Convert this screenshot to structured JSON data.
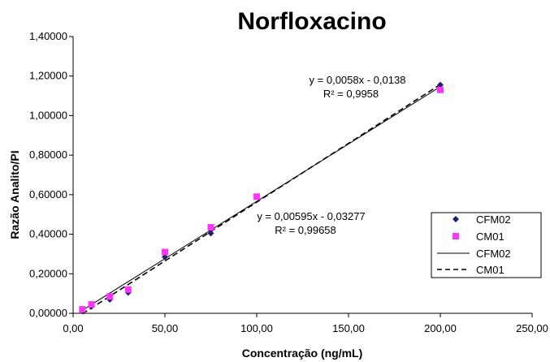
{
  "chart_data": {
    "type": "scatter",
    "title": "Norfloxacino",
    "xlabel": "Concentração (ng/mL)",
    "ylabel": "Razão Analito/PI",
    "xlim": [
      0,
      250
    ],
    "ylim": [
      0,
      1.4
    ],
    "x_ticks": [
      "0,00",
      "50,00",
      "100,00",
      "150,00",
      "200,00",
      "250,00"
    ],
    "y_ticks": [
      "0,00000",
      "0,20000",
      "0,40000",
      "0,60000",
      "0,80000",
      "1,00000",
      "1,20000",
      "1,40000"
    ],
    "grid": false,
    "legend_position": "right",
    "series": [
      {
        "name": "CFM02",
        "marker": "diamond",
        "color": "#1f1f6e",
        "points": [
          [
            5,
            0.015
          ],
          [
            10,
            0.035
          ],
          [
            20,
            0.07
          ],
          [
            30,
            0.105
          ],
          [
            50,
            0.285
          ],
          [
            75,
            0.405
          ],
          [
            200,
            1.155
          ]
        ]
      },
      {
        "name": "CM01",
        "marker": "square",
        "color": "#ff33ff",
        "points": [
          [
            5,
            0.02
          ],
          [
            10,
            0.045
          ],
          [
            20,
            0.085
          ],
          [
            30,
            0.12
          ],
          [
            50,
            0.31
          ],
          [
            75,
            0.435
          ],
          [
            100,
            0.59
          ],
          [
            200,
            1.13
          ]
        ]
      }
    ],
    "trendlines": [
      {
        "name": "CFM02",
        "style": "solid",
        "slope": 0.0058,
        "intercept": -0.0138,
        "equation": "y = 0,0058x - 0,0138",
        "r2": "R² = 0,9958"
      },
      {
        "name": "CM01",
        "style": "dashed",
        "slope": 0.00595,
        "intercept": -0.03277,
        "equation": "y = 0,00595x - 0,03277",
        "r2": "R² = 0,99658"
      }
    ]
  }
}
